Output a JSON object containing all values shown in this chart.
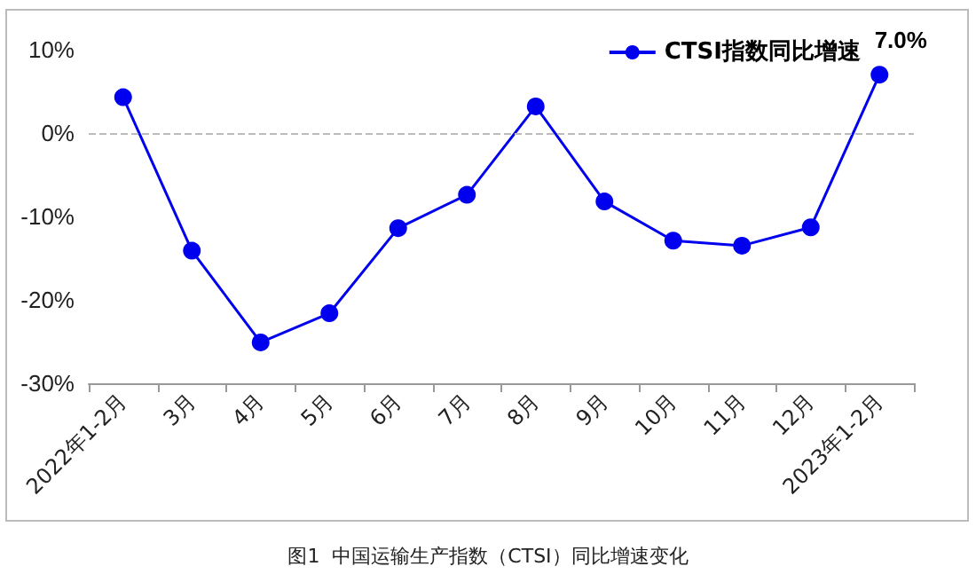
{
  "chart_data": {
    "type": "line",
    "categories": [
      "2022年1-2月",
      "3月",
      "4月",
      "5月",
      "6月",
      "7月",
      "8月",
      "9月",
      "10月",
      "11月",
      "12月",
      "2023年1-2月"
    ],
    "series": [
      {
        "name": "CTSI指数同比增速",
        "color": "#0000ee",
        "values": [
          4.3,
          -14.1,
          -25.1,
          -21.6,
          -11.4,
          -7.4,
          3.2,
          -8.2,
          -12.9,
          -13.5,
          -11.3,
          7.0
        ],
        "value_labels": [
          null,
          null,
          null,
          null,
          null,
          null,
          null,
          null,
          null,
          null,
          null,
          "7.0%"
        ]
      }
    ],
    "ylim": [
      -30,
      10
    ],
    "yticks": [
      {
        "value": -30,
        "label": "-30%"
      },
      {
        "value": -20,
        "label": "-20%"
      },
      {
        "value": -10,
        "label": "-10%"
      },
      {
        "value": 0,
        "label": "0%"
      },
      {
        "value": 10,
        "label": "10%"
      }
    ],
    "ref_lines": [
      {
        "axis": "y",
        "value": 0,
        "color": "#bbbbbb",
        "line_style": "dashed"
      }
    ],
    "annotations": [
      "图1  中国运输生产指数（CTSI）同比增速变化"
    ],
    "legend": "top right",
    "grid": false,
    "marker": "circle",
    "line_style": "solid"
  }
}
